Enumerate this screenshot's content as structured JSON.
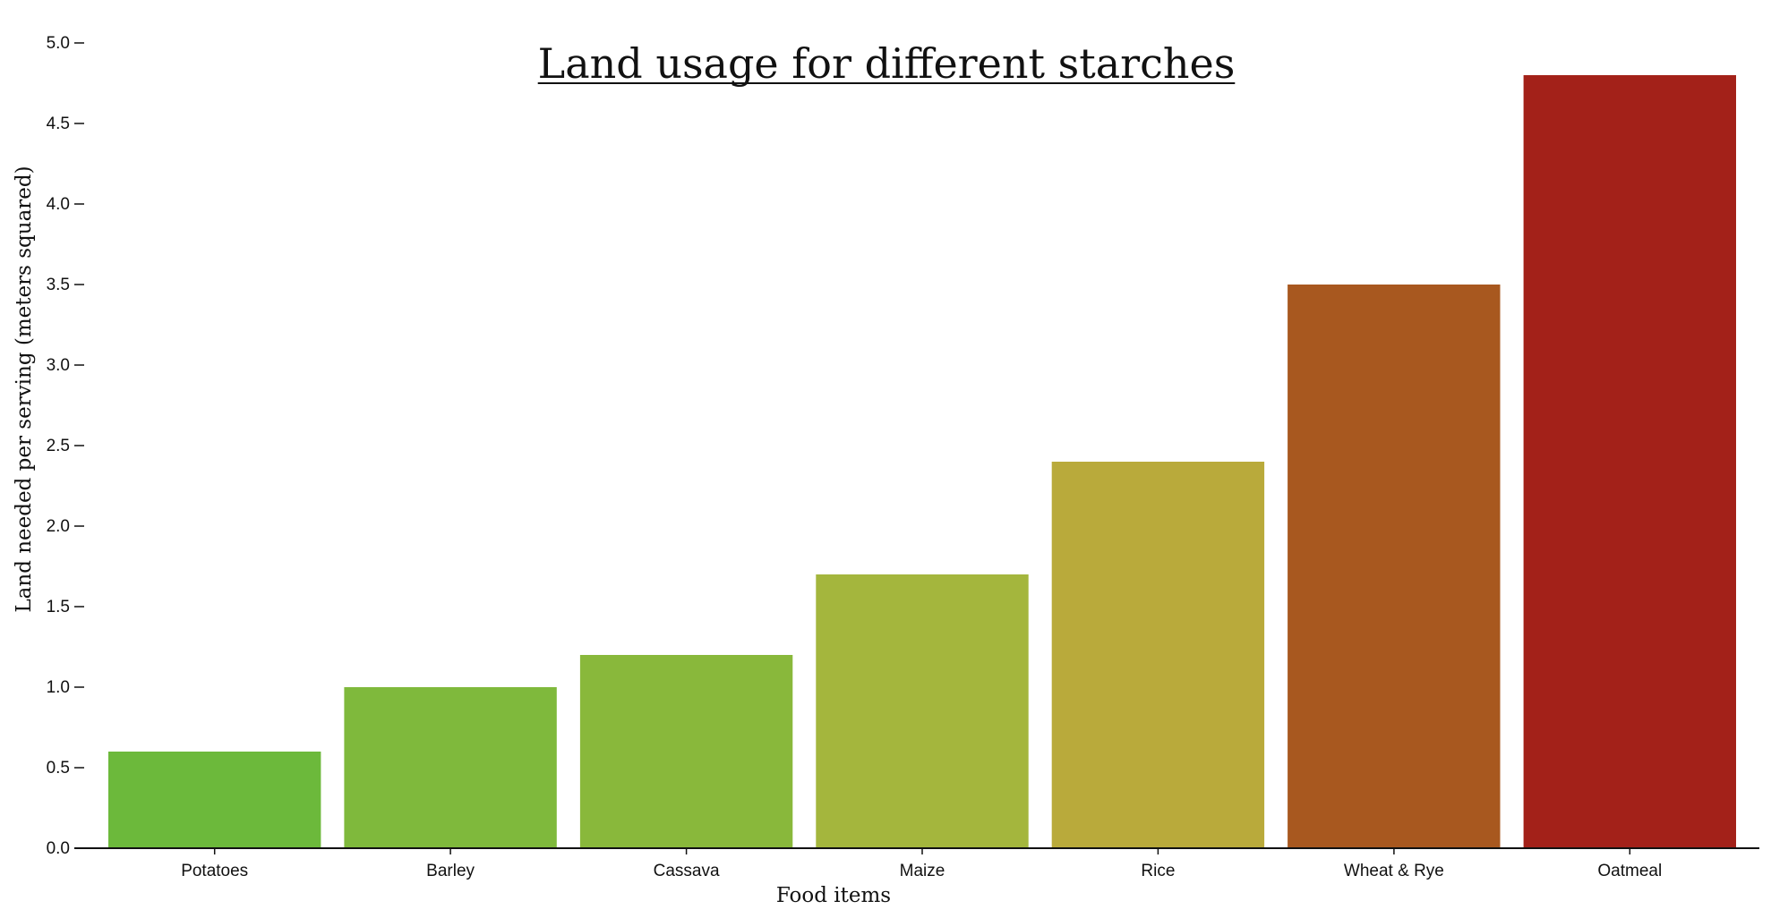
{
  "chart_data": {
    "type": "bar",
    "title": "Land usage for different starches",
    "xlabel": "Food items",
    "ylabel": "Land needed per serving (meters squared)",
    "categories": [
      "Potatoes",
      "Barley",
      "Cassava",
      "Maize",
      "Rice",
      "Wheat & Rye",
      "Oatmeal"
    ],
    "values": [
      0.6,
      1.0,
      1.2,
      1.7,
      2.4,
      3.5,
      4.8
    ],
    "colors": [
      "#6cb93b",
      "#7fb93c",
      "#89b83b",
      "#a4b63d",
      "#b9aa3b",
      "#a8581f",
      "#a32119"
    ],
    "ylim": [
      0,
      5
    ],
    "yticks": [
      0.0,
      0.5,
      1.0,
      1.5,
      2.0,
      2.5,
      3.0,
      3.5,
      4.0,
      4.5,
      5.0
    ],
    "ytick_labels": [
      "0.0",
      "0.5",
      "1.0",
      "1.5",
      "2.0",
      "2.5",
      "3.0",
      "3.5",
      "4.0",
      "4.5",
      "5.0"
    ],
    "grid": false,
    "legend": "none"
  }
}
